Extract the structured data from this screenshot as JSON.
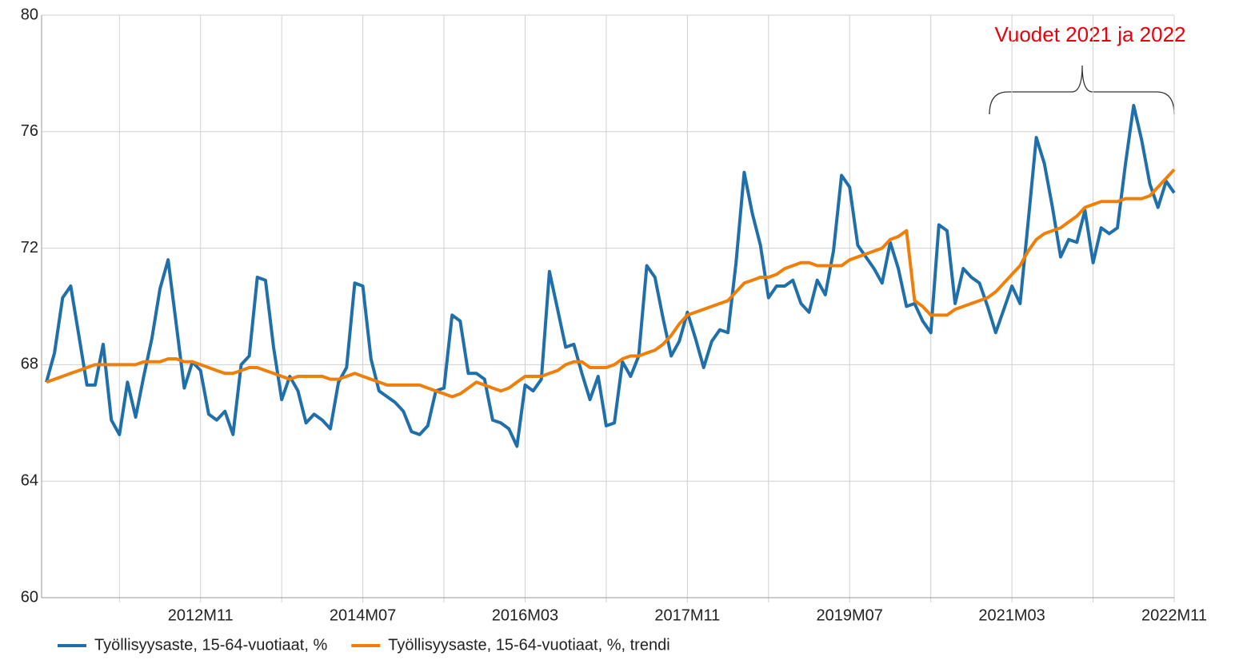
{
  "chart_data": {
    "type": "line",
    "annotation": "Vuodet 2021 ja 2022",
    "categories": [
      null,
      null,
      null,
      null,
      null,
      null,
      null,
      null,
      null,
      null,
      null,
      null,
      null,
      null,
      null,
      null,
      null,
      null,
      null,
      "2012M11",
      null,
      null,
      null,
      null,
      null,
      null,
      null,
      null,
      null,
      null,
      null,
      null,
      null,
      null,
      null,
      null,
      null,
      null,
      null,
      "2014M07",
      null,
      null,
      null,
      null,
      null,
      null,
      null,
      null,
      null,
      null,
      null,
      null,
      null,
      null,
      null,
      null,
      null,
      null,
      null,
      "2016M03",
      null,
      null,
      null,
      null,
      null,
      null,
      null,
      null,
      null,
      null,
      null,
      null,
      null,
      null,
      null,
      null,
      null,
      null,
      null,
      "2017M11",
      null,
      null,
      null,
      null,
      null,
      null,
      null,
      null,
      null,
      null,
      null,
      null,
      null,
      null,
      null,
      null,
      null,
      null,
      null,
      "2019M07",
      null,
      null,
      null,
      null,
      null,
      null,
      null,
      null,
      null,
      null,
      null,
      null,
      null,
      null,
      null,
      null,
      null,
      null,
      null,
      "2021M03",
      null,
      null,
      null,
      null,
      null,
      null,
      null,
      null,
      null,
      null,
      null,
      null,
      null,
      null,
      null,
      null,
      null,
      null,
      null,
      "2022M11"
    ],
    "series": [
      {
        "name": "Työllisyysaste, 15-64-vuotiaat, %",
        "color": "#1f6fab",
        "values": [
          67.4,
          68.4,
          70.3,
          70.7,
          69.0,
          67.3,
          67.3,
          68.7,
          66.1,
          65.6,
          67.4,
          66.2,
          67.6,
          68.9,
          70.6,
          71.6,
          69.4,
          67.2,
          68.1,
          67.8,
          66.3,
          66.1,
          66.4,
          65.6,
          68.0,
          68.3,
          71.0,
          70.9,
          68.6,
          66.8,
          67.6,
          67.1,
          66.0,
          66.3,
          66.1,
          65.8,
          67.4,
          67.9,
          70.8,
          70.7,
          68.2,
          67.1,
          66.9,
          66.7,
          66.4,
          65.7,
          65.6,
          65.9,
          67.1,
          67.2,
          69.7,
          69.5,
          67.7,
          67.7,
          67.5,
          66.1,
          66.0,
          65.8,
          65.2,
          67.3,
          67.1,
          67.5,
          71.2,
          69.9,
          68.6,
          68.7,
          67.7,
          66.8,
          67.6,
          65.9,
          66.0,
          68.1,
          67.6,
          68.3,
          71.4,
          71.0,
          69.6,
          68.3,
          68.8,
          69.8,
          68.9,
          67.9,
          68.8,
          69.2,
          69.1,
          71.5,
          74.6,
          73.2,
          72.1,
          70.3,
          70.7,
          70.7,
          70.9,
          70.1,
          69.8,
          70.9,
          70.4,
          71.9,
          74.5,
          74.1,
          72.1,
          71.7,
          71.3,
          70.8,
          72.2,
          71.3,
          70.0,
          70.1,
          69.5,
          69.1,
          72.8,
          72.6,
          70.1,
          71.3,
          71.0,
          70.8,
          70.0,
          69.1,
          69.9,
          70.7,
          70.1,
          72.9,
          75.8,
          74.9,
          73.4,
          71.7,
          72.3,
          72.2,
          73.3,
          71.5,
          72.7,
          72.5,
          72.7,
          74.9,
          76.9,
          75.7,
          74.2,
          73.4,
          74.3,
          73.9
        ]
      },
      {
        "name": "Työllisyysaste, 15-64-vuotiaat, %, trendi",
        "color": "#f07f09",
        "values": [
          67.4,
          67.5,
          67.6,
          67.7,
          67.8,
          67.9,
          68.0,
          68.0,
          68.0,
          68.0,
          68.0,
          68.0,
          68.1,
          68.1,
          68.1,
          68.2,
          68.2,
          68.1,
          68.1,
          68.0,
          67.9,
          67.8,
          67.7,
          67.7,
          67.8,
          67.9,
          67.9,
          67.8,
          67.7,
          67.6,
          67.5,
          67.6,
          67.6,
          67.6,
          67.6,
          67.5,
          67.5,
          67.6,
          67.7,
          67.6,
          67.5,
          67.4,
          67.3,
          67.3,
          67.3,
          67.3,
          67.3,
          67.2,
          67.1,
          67.0,
          66.9,
          67.0,
          67.2,
          67.4,
          67.3,
          67.2,
          67.1,
          67.2,
          67.4,
          67.6,
          67.6,
          67.6,
          67.7,
          67.8,
          68.0,
          68.1,
          68.1,
          67.9,
          67.9,
          67.9,
          68.0,
          68.2,
          68.3,
          68.3,
          68.4,
          68.5,
          68.7,
          69.0,
          69.4,
          69.7,
          69.8,
          69.9,
          70.0,
          70.1,
          70.2,
          70.5,
          70.8,
          70.9,
          71.0,
          71.0,
          71.1,
          71.3,
          71.4,
          71.5,
          71.5,
          71.4,
          71.4,
          71.4,
          71.4,
          71.6,
          71.7,
          71.8,
          71.9,
          72.0,
          72.3,
          72.4,
          72.6,
          70.2,
          70.0,
          69.7,
          69.7,
          69.7,
          69.9,
          70.0,
          70.1,
          70.2,
          70.3,
          70.5,
          70.8,
          71.1,
          71.4,
          71.9,
          72.3,
          72.5,
          72.6,
          72.7,
          72.9,
          73.1,
          73.4,
          73.5,
          73.6,
          73.6,
          73.6,
          73.7,
          73.7,
          73.7,
          73.8,
          74.1,
          74.4,
          74.7
        ]
      }
    ],
    "ylim": [
      60,
      80
    ],
    "yticks": [
      60,
      64,
      68,
      72,
      76,
      80
    ],
    "grid": true
  }
}
